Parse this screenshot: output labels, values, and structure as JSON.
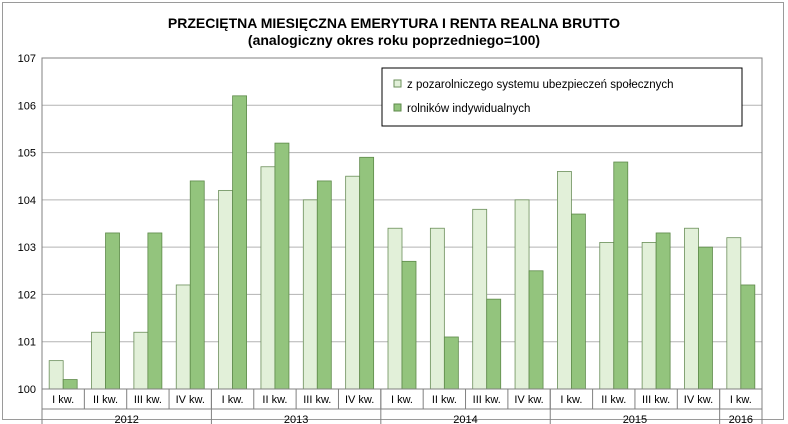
{
  "chart_data": {
    "type": "bar",
    "title": "PRZECIĘTNA MIESIĘCZNA EMERYTURA I RENTA REALNA BRUTTO",
    "subtitle": "(analogiczny okres roku poprzedniego=100)",
    "xlabel": "",
    "ylabel": "",
    "ylim": [
      100,
      107
    ],
    "yticks": [
      "100",
      "101",
      "102",
      "103",
      "104",
      "105",
      "106",
      "107"
    ],
    "grid": true,
    "legend_position": "top-right",
    "categories": [
      "I kw.",
      "II kw.",
      "III kw.",
      "IV kw.",
      "I kw.",
      "II kw.",
      "III kw.",
      "IV kw.",
      "I kw.",
      "II kw.",
      "III kw.",
      "IV kw.",
      "I kw.",
      "II kw.",
      "III kw.",
      "IV kw.",
      "I kw."
    ],
    "years": [
      {
        "label": "2012",
        "count": 4
      },
      {
        "label": "2013",
        "count": 4
      },
      {
        "label": "2014",
        "count": 4
      },
      {
        "label": "2015",
        "count": 4
      },
      {
        "label": "2016",
        "count": 1
      }
    ],
    "series": [
      {
        "name": "z pozarolniczego systemu ubezpieczeń społecznych",
        "color": "#e2f0d9",
        "stroke": "#6b8f5a",
        "values": [
          100.6,
          101.2,
          101.2,
          102.2,
          104.2,
          104.7,
          104.0,
          104.5,
          103.4,
          103.4,
          103.8,
          104.0,
          104.6,
          103.1,
          103.1,
          103.4,
          103.2
        ]
      },
      {
        "name": "rolników indywidualnych",
        "color": "#93c47d",
        "stroke": "#5e8a4a",
        "values": [
          100.2,
          103.3,
          103.3,
          104.4,
          106.2,
          105.2,
          104.4,
          104.9,
          102.7,
          101.1,
          101.9,
          102.5,
          103.7,
          104.8,
          103.3,
          103.0,
          102.2
        ]
      }
    ]
  }
}
